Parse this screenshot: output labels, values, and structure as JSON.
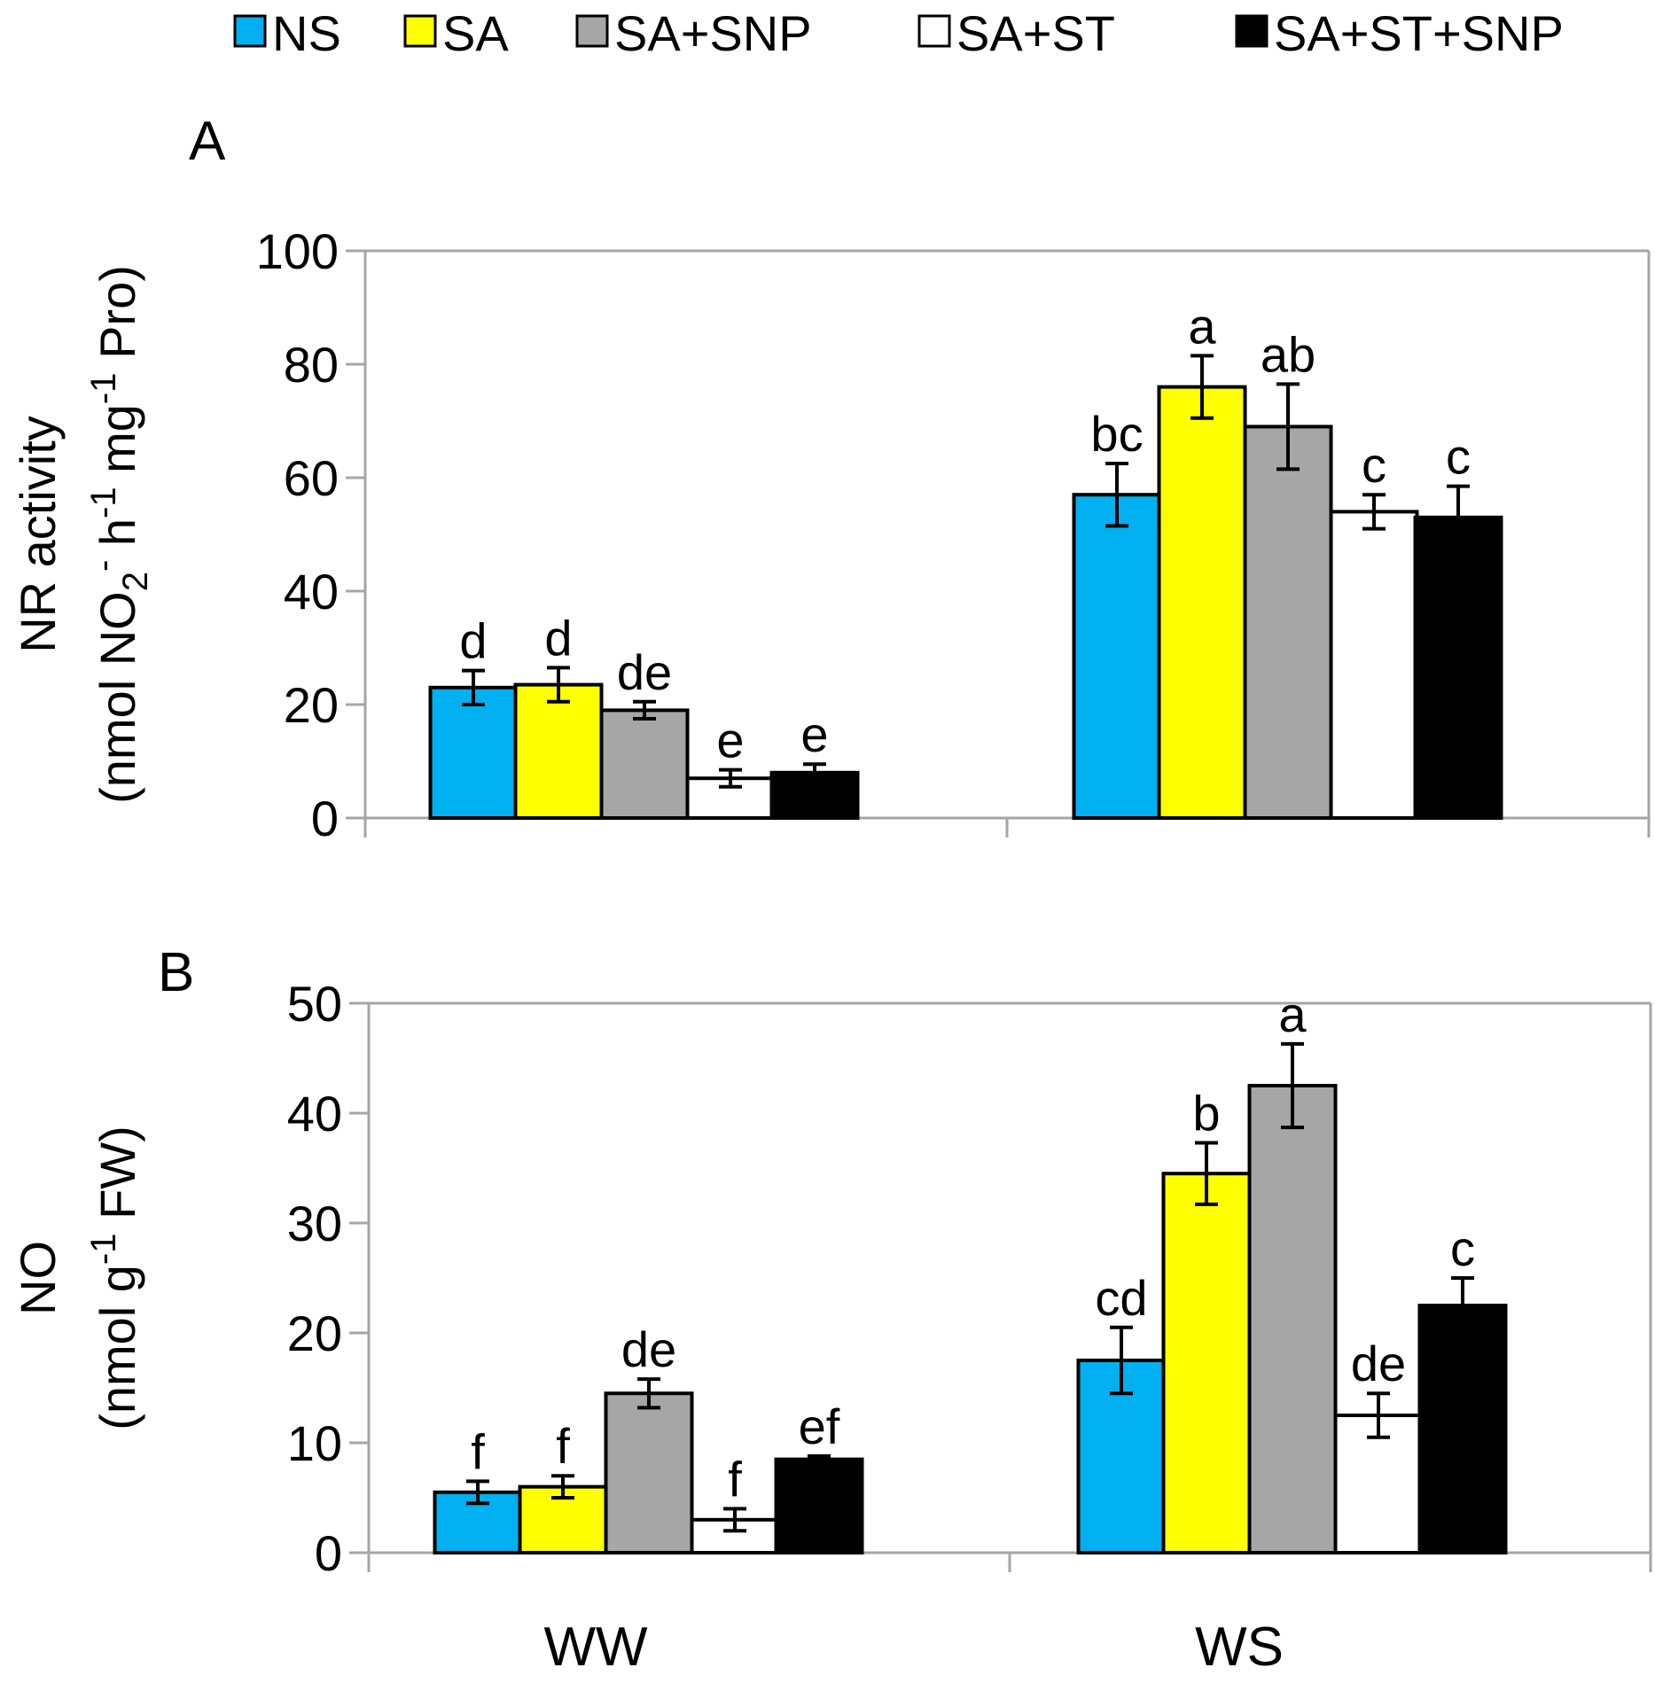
{
  "legend": {
    "items": [
      {
        "label": "NS",
        "color": "#00B0F0"
      },
      {
        "label": "SA",
        "color": "#FFFF00"
      },
      {
        "label": "SA+SNP",
        "color": "#A6A6A6"
      },
      {
        "label": "SA+ST",
        "color": "#FFFFFF"
      },
      {
        "label": "SA+ST+SNP",
        "color": "#000000"
      }
    ],
    "position": "top"
  },
  "categories": [
    "WW",
    "WS"
  ],
  "chart_data": [
    {
      "type": "bar",
      "panel_label": "A",
      "ylabel": "NR activity",
      "ylabel_units": {
        "pre": "(nmol NO",
        "sub": "2",
        "sup1": "-",
        "mid1": " h",
        "sup2": "-1",
        "mid2": " mg",
        "sup3": "-1",
        "post": " Pro)"
      },
      "ylim": [
        0,
        100
      ],
      "yticks": [
        0,
        20,
        40,
        60,
        80,
        100
      ],
      "categories": [
        "WW",
        "WS"
      ],
      "grid": false,
      "series": [
        {
          "name": "NS",
          "values": [
            23,
            57
          ],
          "errors": [
            3,
            5.5
          ],
          "letters": [
            "d",
            "bc"
          ]
        },
        {
          "name": "SA",
          "values": [
            23.5,
            76
          ],
          "errors": [
            3,
            5.5
          ],
          "letters": [
            "d",
            "a"
          ]
        },
        {
          "name": "SA+SNP",
          "values": [
            19,
            69
          ],
          "errors": [
            1.5,
            7.5
          ],
          "letters": [
            "de",
            "ab"
          ]
        },
        {
          "name": "SA+ST",
          "values": [
            7,
            54
          ],
          "errors": [
            1.5,
            3
          ],
          "letters": [
            "e",
            "c"
          ]
        },
        {
          "name": "SA+ST+SNP",
          "values": [
            8,
            53
          ],
          "errors": [
            1.5,
            5.5
          ],
          "letters": [
            "e",
            "c"
          ]
        }
      ]
    },
    {
      "type": "bar",
      "panel_label": "B",
      "ylabel": "NO",
      "ylabel_units": {
        "pre": "(nmol g",
        "sup1": "-1",
        "post": " FW)"
      },
      "ylim": [
        0,
        50
      ],
      "yticks": [
        0,
        10,
        20,
        30,
        40,
        50
      ],
      "categories": [
        "WW",
        "WS"
      ],
      "grid": false,
      "series": [
        {
          "name": "NS",
          "values": [
            5.5,
            17.5
          ],
          "errors": [
            1,
            3
          ],
          "letters": [
            "f",
            "cd"
          ]
        },
        {
          "name": "SA",
          "values": [
            6,
            34.5
          ],
          "errors": [
            1,
            2.8
          ],
          "letters": [
            "f",
            "b"
          ]
        },
        {
          "name": "SA+SNP",
          "values": [
            14.5,
            42.5
          ],
          "errors": [
            1.3,
            3.8
          ],
          "letters": [
            "de",
            "a"
          ]
        },
        {
          "name": "SA+ST",
          "values": [
            3,
            12.5
          ],
          "errors": [
            1,
            2
          ],
          "letters": [
            "f",
            "de"
          ]
        },
        {
          "name": "SA+ST+SNP",
          "values": [
            8.5,
            22.5
          ],
          "errors": [
            0.3,
            2.5
          ],
          "letters": [
            "ef",
            "c"
          ]
        }
      ]
    }
  ]
}
